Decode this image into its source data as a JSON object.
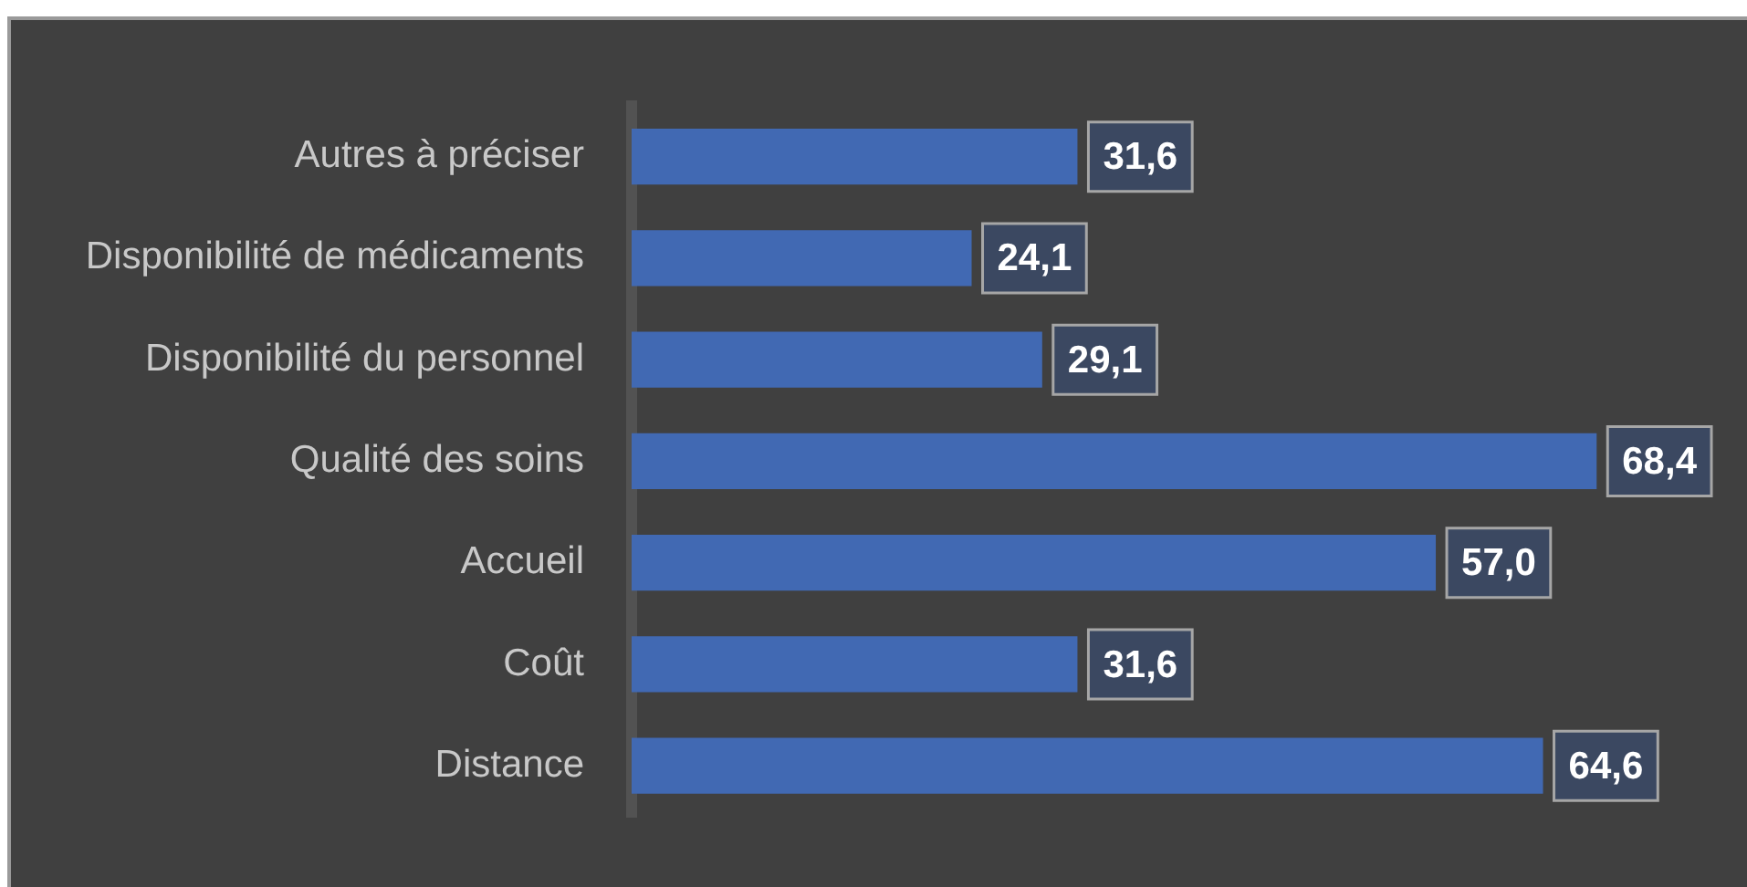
{
  "chart_data": {
    "type": "bar",
    "orientation": "horizontal",
    "categories": [
      "Autres à préciser",
      "Disponibilité de médicaments",
      "Disponibilité du personnel",
      "Qualité des soins",
      "Accueil",
      "Coût",
      "Distance"
    ],
    "values": [
      31.6,
      24.1,
      29.1,
      68.4,
      57.0,
      31.6,
      64.6
    ],
    "value_labels": [
      "31,6",
      "24,1",
      "29,1",
      "68,4",
      "57,0",
      "31,6",
      "64,6"
    ],
    "color": "#4169b3",
    "tick_labels": "y"
  }
}
